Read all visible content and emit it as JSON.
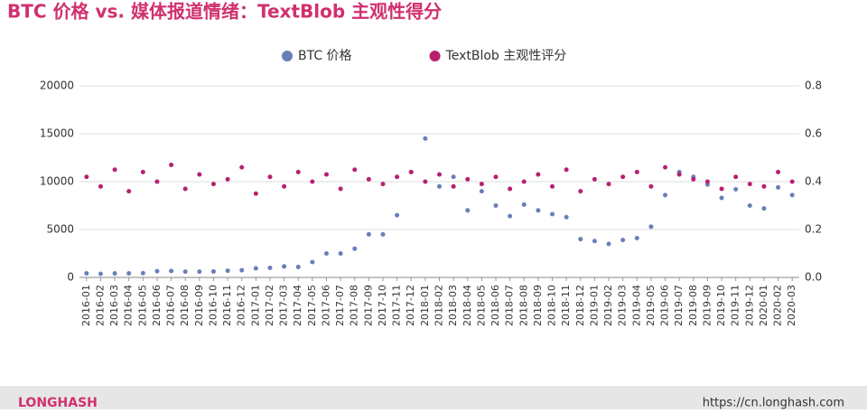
{
  "chart_data": {
    "type": "scatter",
    "title": "BTC 价格 vs. 媒体报道情绪：TextBlob 主观性得分",
    "categories": [
      "2016-01",
      "2016-02",
      "2016-03",
      "2016-04",
      "2016-05",
      "2016-06",
      "2016-07",
      "2016-08",
      "2016-09",
      "2016-10",
      "2016-11",
      "2016-12",
      "2017-01",
      "2017-02",
      "2017-03",
      "2017-04",
      "2017-05",
      "2017-06",
      "2017-07",
      "2017-08",
      "2017-09",
      "2017-10",
      "2017-11",
      "2017-12",
      "2018-01",
      "2018-02",
      "2018-03",
      "2018-04",
      "2018-05",
      "2018-06",
      "2018-07",
      "2018-08",
      "2018-09",
      "2018-10",
      "2018-11",
      "2018-12",
      "2019-01",
      "2019-02",
      "2019-03",
      "2019-04",
      "2019-05",
      "2019-06",
      "2019-07",
      "2019-08",
      "2019-09",
      "2019-10",
      "2019-11",
      "2019-12",
      "2020-01",
      "2020-02",
      "2020-03"
    ],
    "series": [
      {
        "name": "BTC 价格",
        "color": "#6a7fb8",
        "axis": "y",
        "values": [
          430,
          380,
          420,
          420,
          450,
          650,
          670,
          600,
          600,
          620,
          700,
          750,
          950,
          1000,
          1150,
          1100,
          1600,
          2500,
          2500,
          3000,
          4500,
          4500,
          6500,
          11000,
          14500,
          9500,
          10500,
          7000,
          9000,
          7500,
          6400,
          7600,
          7000,
          6600,
          6300,
          4000,
          3800,
          3500,
          3900,
          4100,
          5300,
          8600,
          11000,
          10500,
          9700,
          8300,
          9200,
          7500,
          7200,
          9400,
          8600
        ]
      },
      {
        "name": "TextBlob 主观性评分",
        "color": "#b8206f",
        "axis": "y2",
        "values": [
          0.42,
          0.38,
          0.45,
          0.36,
          0.44,
          0.4,
          0.47,
          0.37,
          0.43,
          0.39,
          0.41,
          0.46,
          0.35,
          0.42,
          0.38,
          0.44,
          0.4,
          0.43,
          0.37,
          0.45,
          0.41,
          0.39,
          0.42,
          0.44,
          0.4,
          0.43,
          0.38,
          0.41,
          0.39,
          0.42,
          0.37,
          0.4,
          0.43,
          0.38,
          0.45,
          0.36,
          0.41,
          0.39,
          0.42,
          0.44,
          0.38,
          0.46,
          0.43,
          0.41,
          0.4,
          0.37,
          0.42,
          0.39,
          0.38,
          0.44,
          0.4
        ]
      }
    ],
    "ylim": [
      0,
      20000
    ],
    "yticks": [
      0,
      5000,
      10000,
      15000,
      20000
    ],
    "y2lim": [
      0,
      0.8
    ],
    "y2ticks": [
      {
        "value": 0,
        "label": "0.0"
      },
      0.2,
      0.4,
      0.6,
      0.8
    ],
    "grid": true,
    "footer": {
      "brand": "LONGHASH",
      "url": "https://cn.longhash.com"
    }
  }
}
